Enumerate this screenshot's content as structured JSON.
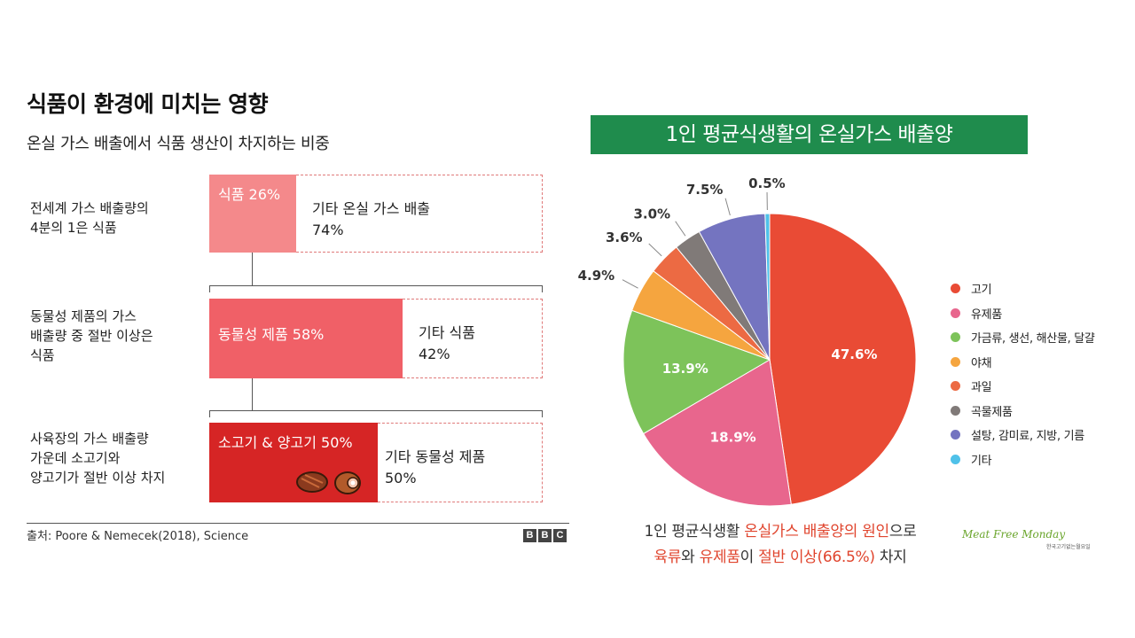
{
  "left": {
    "title": "식품이 환경에 미치는 영향",
    "subtitle": "온실 가스 배출에서 식품 생산이 차지하는 비중",
    "rows": [
      {
        "desc": "전세계 가스 배출량의\n 4분의 1은 식품",
        "bar": "식품 26%",
        "rest": "기타 온실 가스 배출\n74%",
        "bar_pct": 26
      },
      {
        "desc": "동물성 제품의 가스\n배출량 중 절반 이상은\n식품",
        "bar": "동물성 제품 58%",
        "rest": "기타 식품\n42%",
        "bar_pct": 58
      },
      {
        "desc": "사육장의 가스 배출량\n가운데 소고기와\n양고기가 절반 이상 차지",
        "bar": "소고기 & 양고기 50%",
        "rest": "기타 동물성 제품\n50%",
        "bar_pct": 50
      }
    ],
    "source": "출처: Poore & Nemecek(2018), Science",
    "logo_letters": [
      "B",
      "B",
      "C"
    ],
    "colors": {
      "bar1": "#f4898b",
      "bar2": "#f06067",
      "bar3": "#d62525",
      "dash": "#e07a7a"
    }
  },
  "right": {
    "banner": "1인 평균식생활의 온실가스 배출양",
    "note_line1_prefix": "1인 평균식생활 ",
    "note_line1_highlight": "온실가스 배출양의 원인",
    "note_line1_suffix": "으로",
    "note_line2_hl1": "육류",
    "note_line2_mid1": "와 ",
    "note_line2_hl2": "유제품",
    "note_line2_mid2": "이 ",
    "note_line2_hl3": "절반 이상(66.5%)",
    "note_line2_suffix": " 차지",
    "logo_text": "Meat Free Monday",
    "logo_sub": "한국고기없는월요일"
  },
  "chart_data": {
    "type": "pie",
    "title": "1인 평균식생활의 온실가스 배출양",
    "legend_position": "right",
    "slices": [
      {
        "label": "고기",
        "value": 47.6,
        "color": "#e94b35"
      },
      {
        "label": "유제품",
        "value": 18.9,
        "color": "#e8668d"
      },
      {
        "label": "가금류, 생선, 해산물, 달걀",
        "value": 13.9,
        "color": "#7dc35a"
      },
      {
        "label": "야채",
        "value": 4.9,
        "color": "#f5a53f"
      },
      {
        "label": "과일",
        "value": 3.6,
        "color": "#ec6a43"
      },
      {
        "label": "곡물제품",
        "value": 3.0,
        "color": "#807a78"
      },
      {
        "label": "설탕, 감미료, 지방, 기름",
        "value": 7.5,
        "color": "#7474c0"
      },
      {
        "label": "기타",
        "value": 0.5,
        "color": "#4fc1e9"
      }
    ]
  }
}
